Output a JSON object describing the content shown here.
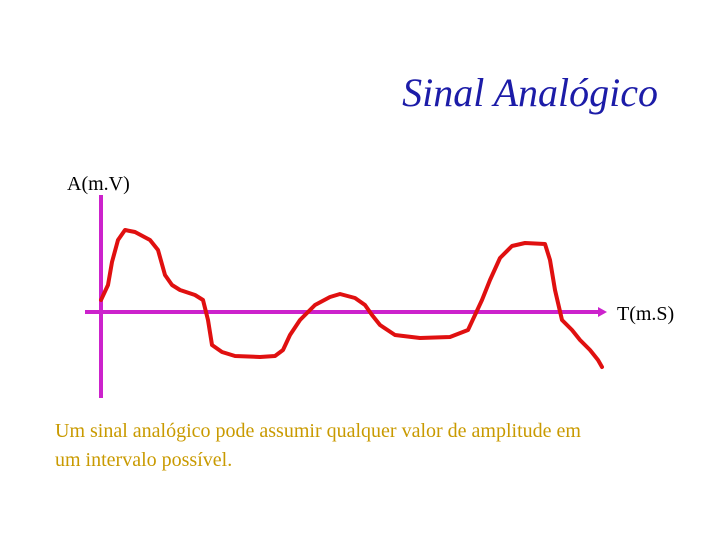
{
  "title": "Sinal Analógico",
  "y_axis_label": "A(m.V)",
  "x_axis_label": "T(m.S)",
  "caption": {
    "lines": [
      "Um sinal analógico pode assumir qualquer valor de amplitude em",
      "um intervalo possível."
    ]
  }
}
